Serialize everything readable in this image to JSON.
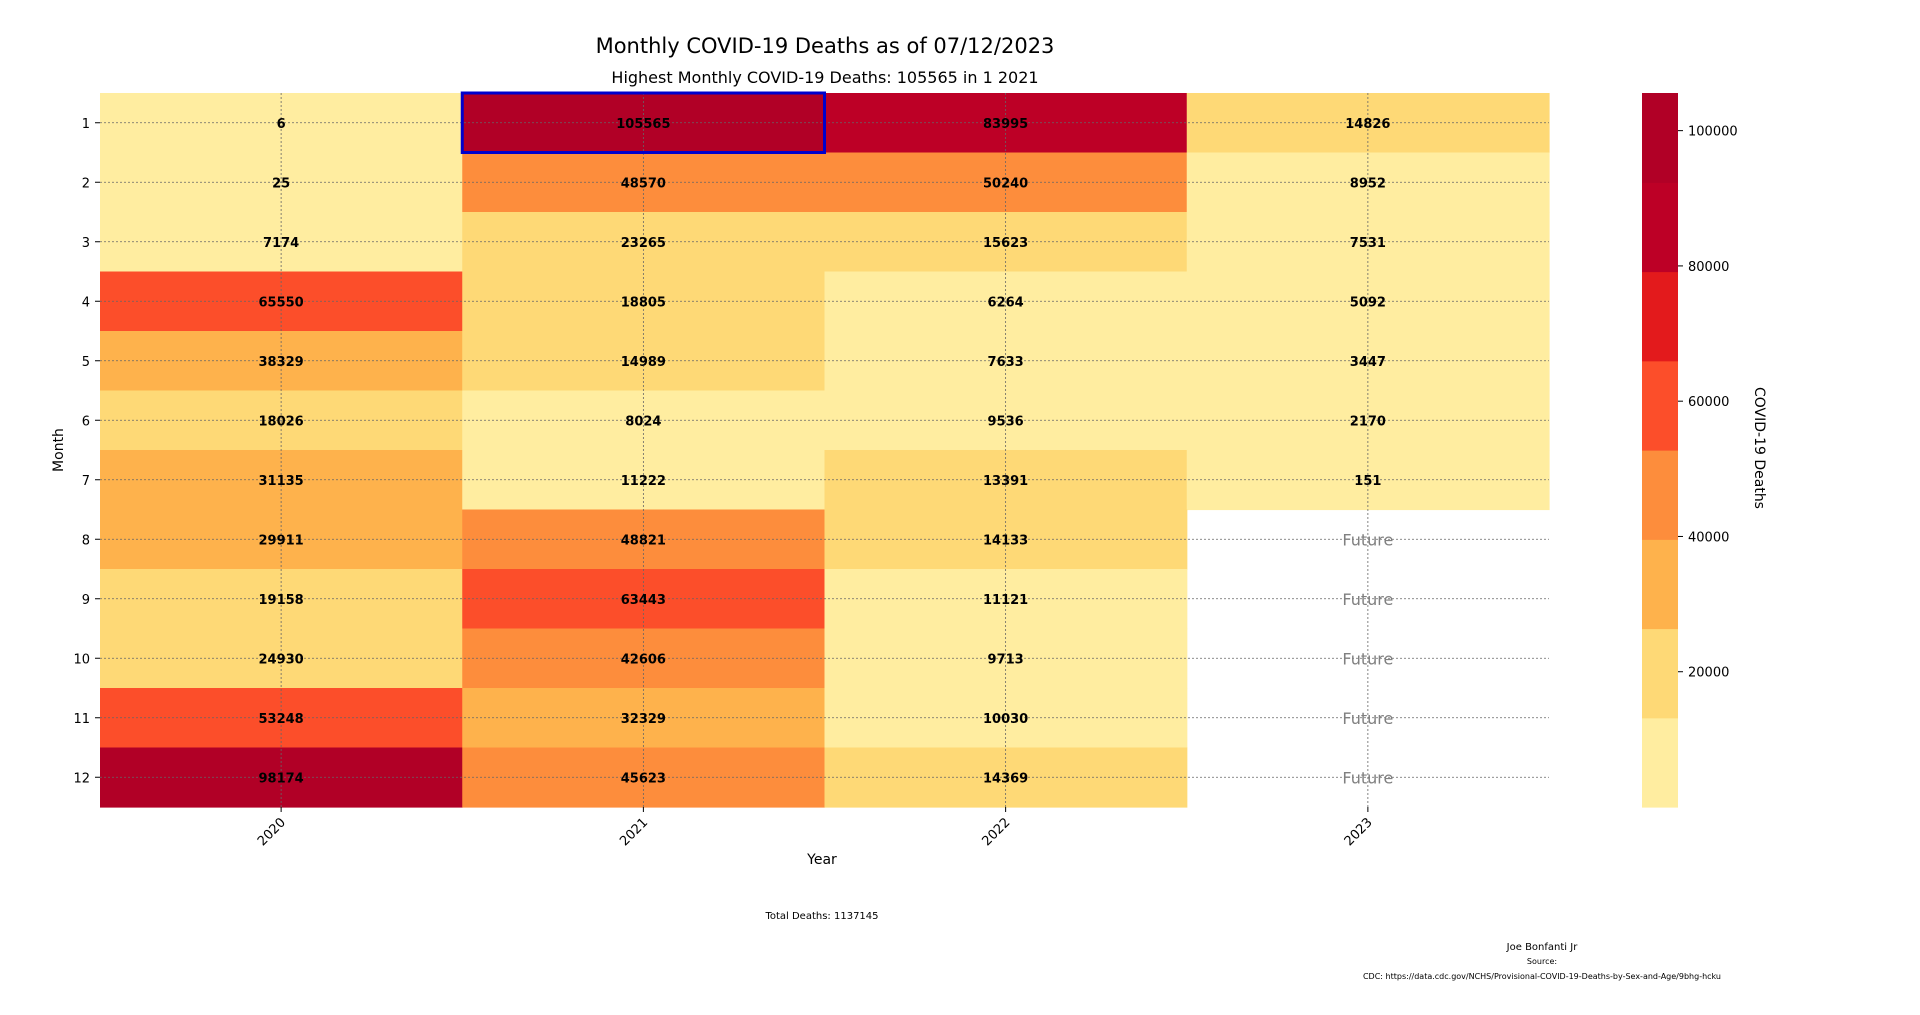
{
  "chart_data": {
    "type": "heatmap",
    "title": "Monthly COVID-19 Deaths as of 07/12/2023",
    "subtitle": "Highest Monthly COVID-19 Deaths: 105565 in 1 2021",
    "xlabel": "Year",
    "ylabel": "Month",
    "x_categories": [
      "2020",
      "2021",
      "2022",
      "2023"
    ],
    "y_categories": [
      "1",
      "2",
      "3",
      "4",
      "5",
      "6",
      "7",
      "8",
      "9",
      "10",
      "11",
      "12"
    ],
    "values": [
      [
        6,
        105565,
        83995,
        14826
      ],
      [
        25,
        48570,
        50240,
        8952
      ],
      [
        7174,
        23265,
        15623,
        7531
      ],
      [
        65550,
        18805,
        6264,
        5092
      ],
      [
        38329,
        14989,
        7633,
        3447
      ],
      [
        18026,
        8024,
        9536,
        2170
      ],
      [
        31135,
        11222,
        13391,
        151
      ],
      [
        29911,
        48821,
        14133,
        null
      ],
      [
        19158,
        63443,
        11121,
        null
      ],
      [
        24930,
        42606,
        9713,
        null
      ],
      [
        53248,
        32329,
        10030,
        null
      ],
      [
        98174,
        45623,
        14369,
        null
      ]
    ],
    "missing_label": "Future",
    "highlight": {
      "row": "1",
      "column": "2021",
      "value": 105565,
      "color": "#0000cc"
    },
    "grid": true,
    "colorbar": {
      "label": "COVID-19 Deaths",
      "min": 0,
      "max": 105565,
      "ticks": [
        20000,
        40000,
        60000,
        80000,
        100000
      ],
      "colors": [
        "#ffeda0",
        "#fed976",
        "#feb24c",
        "#fd8d3c",
        "#fc4e2a",
        "#e31a1c",
        "#bd0026",
        "#b10026"
      ]
    }
  },
  "annotations": {
    "total_deaths": "Total Deaths: 1137145",
    "author": "Joe Bonfanti Jr",
    "source_label": "Source:",
    "source_url": "CDC: https://data.cdc.gov/NCHS/Provisional-COVID-19-Deaths-by-Sex-and-Age/9bhg-hcku"
  }
}
